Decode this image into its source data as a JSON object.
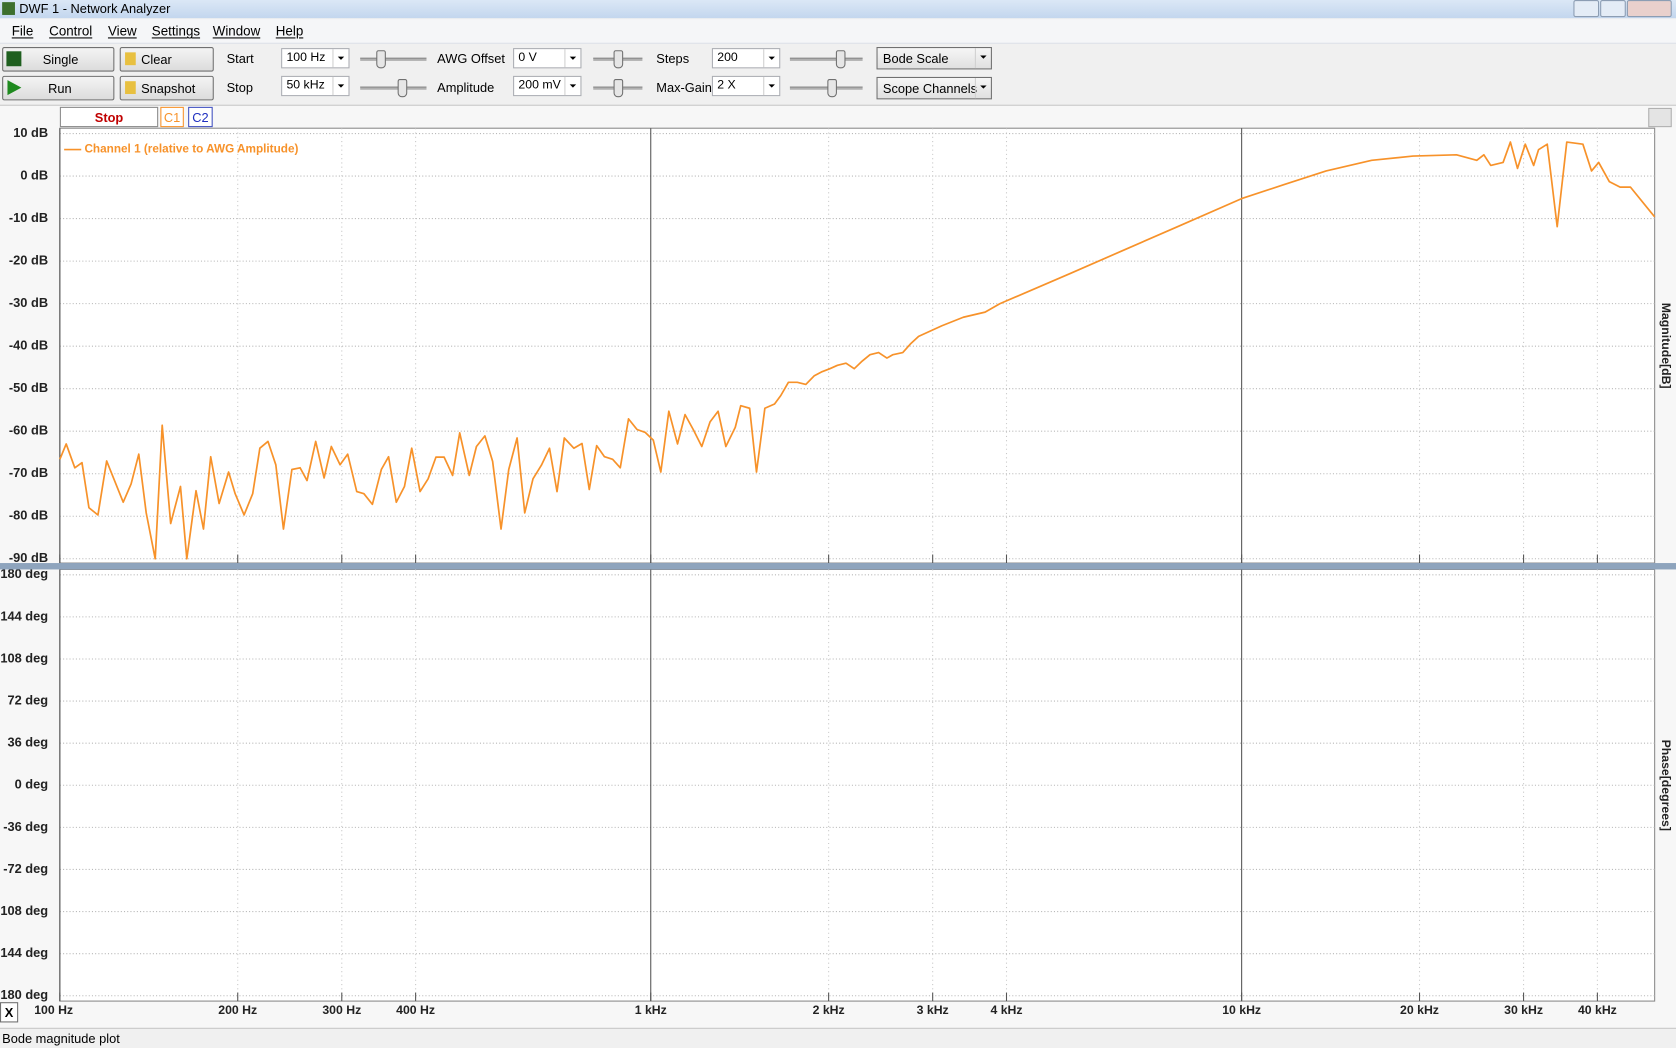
{
  "window": {
    "title": "DWF 1 - Network Analyzer"
  },
  "menu": [
    "File",
    "Control",
    "View",
    "Settings",
    "Window",
    "Help"
  ],
  "toolbar": {
    "single": "Single",
    "run": "Run",
    "clear": "Clear",
    "snapshot": "Snapshot",
    "start_label": "Start",
    "start_value": "100 Hz",
    "stop_label": "Stop",
    "stop_value": "50 kHz",
    "awg_offset_label": "AWG Offset",
    "awg_offset_value": "0 V",
    "amplitude_label": "Amplitude",
    "amplitude_value": "200 mV",
    "steps_label": "Steps",
    "steps_value": "200",
    "max_gain_label": "Max-Gain",
    "max_gain_value": "2 X",
    "scale_select": "Bode Scale",
    "channels_select": "Scope Channels"
  },
  "tabs": {
    "stop": "Stop",
    "c1": "C1",
    "c2": "C2"
  },
  "status": "Bode magnitude plot",
  "close_button": "X",
  "chart_data": [
    {
      "type": "line",
      "xscale": "log",
      "xlim": [
        100,
        50000
      ],
      "ylim": [
        -90,
        10
      ],
      "y_label": "Magnitude[dB]",
      "grid": true,
      "legend": "top-left",
      "yticks": [
        {
          "value": 10,
          "label": "10 dB"
        },
        {
          "value": 0,
          "label": "0 dB"
        },
        {
          "value": -10,
          "label": "-10 dB"
        },
        {
          "value": -20,
          "label": "-20 dB"
        },
        {
          "value": -30,
          "label": "-30 dB"
        },
        {
          "value": -40,
          "label": "-40 dB"
        },
        {
          "value": -50,
          "label": "-50 dB"
        },
        {
          "value": -60,
          "label": "-60 dB"
        },
        {
          "value": -70,
          "label": "-70 dB"
        },
        {
          "value": -80,
          "label": "-80 dB"
        },
        {
          "value": -90,
          "label": "-90 dB"
        }
      ],
      "x": [
        100,
        102.5,
        106,
        109,
        112,
        116,
        120,
        128,
        132,
        136,
        140,
        145,
        149,
        154,
        160,
        164,
        170,
        175,
        180,
        186,
        193,
        198,
        205,
        212,
        218,
        225,
        232,
        239,
        247,
        255,
        262,
        271,
        280,
        288,
        298,
        307,
        318,
        327,
        338,
        350,
        360,
        371,
        383,
        394,
        407,
        420,
        433,
        447,
        462,
        475,
        493,
        507,
        524,
        540,
        558,
        575,
        594,
        612,
        632,
        653,
        674,
        694,
        714,
        741,
        765,
        787,
        810,
        835,
        862,
        888,
        917,
        948,
        979,
        1010,
        1040,
        1073,
        1110,
        1143,
        1180,
        1220,
        1260,
        1300,
        1340,
        1390,
        1420,
        1470,
        1510,
        1560,
        1620,
        1660,
        1710,
        1770,
        1830,
        1890,
        1950,
        2010,
        2070,
        2140,
        2210,
        2280,
        2350,
        2430,
        2510,
        2570,
        2670,
        2750,
        2840,
        3110,
        3380,
        3680,
        3900,
        5130,
        6320,
        7790,
        10000,
        11800,
        13900,
        16600,
        19500,
        23100,
        25000,
        25700,
        26400,
        27700,
        28500,
        29300,
        30200,
        31200,
        31800,
        32900,
        34200,
        35500,
        37800,
        39100,
        40200,
        41900,
        43700,
        45500,
        50000
      ],
      "series": [
        {
          "name": "Channel 1 (relative to AWG Amplitude)",
          "color": "#f7922a",
          "values": [
            -66.6,
            -63,
            -68.6,
            -67.4,
            -78,
            -79.7,
            -67,
            -76.7,
            -72.4,
            -65.4,
            -79.2,
            -90,
            -58.6,
            -81.7,
            -73,
            -90,
            -74,
            -83,
            -66,
            -77,
            -69.6,
            -74.7,
            -79.7,
            -74.7,
            -64,
            -62.4,
            -67.9,
            -83,
            -69,
            -68.6,
            -71.6,
            -62.4,
            -71,
            -63.6,
            -67.9,
            -65.4,
            -74.2,
            -74.7,
            -77.2,
            -69,
            -66,
            -76.7,
            -73,
            -64,
            -74.2,
            -71.2,
            -66.1,
            -66.1,
            -70.4,
            -60.4,
            -70.4,
            -63.6,
            -61.1,
            -67.1,
            -83,
            -69,
            -61.6,
            -79.2,
            -71.2,
            -68,
            -64,
            -74.2,
            -61.6,
            -64,
            -62.9,
            -73.7,
            -63.4,
            -66,
            -66.6,
            -68.6,
            -57.1,
            -59.6,
            -60.3,
            -62.1,
            -69.6,
            -55.3,
            -63,
            -56.1,
            -59.6,
            -63.6,
            -57.8,
            -55.3,
            -63.6,
            -59.1,
            -54,
            -54.6,
            -69.6,
            -54.6,
            -53.6,
            -51.6,
            -48.5,
            -48.5,
            -49,
            -47,
            -46,
            -45.3,
            -44.5,
            -44,
            -45.3,
            -43.5,
            -42,
            -41.5,
            -42.8,
            -42,
            -41.5,
            -39.5,
            -37.7,
            -35.2,
            -33.2,
            -32,
            -30,
            -22.9,
            -17.4,
            -11.9,
            -5.3,
            -2,
            1.2,
            3.7,
            4.7,
            5,
            3.7,
            5,
            2.5,
            3.2,
            8,
            1.8,
            7.5,
            2.5,
            6.2,
            7.5,
            -11.9,
            8,
            7.5,
            1.2,
            3.2,
            -1.3,
            -2.6,
            -2.6,
            -9.6
          ]
        }
      ]
    },
    {
      "type": "line",
      "xscale": "log",
      "xlim": [
        100,
        50000
      ],
      "ylim": [
        -180,
        180
      ],
      "y_label": "Phase[degrees]",
      "grid": true,
      "yticks": [
        {
          "value": 180,
          "label": "180 deg"
        },
        {
          "value": 144,
          "label": "144 deg"
        },
        {
          "value": 108,
          "label": "108 deg"
        },
        {
          "value": 72,
          "label": "72 deg"
        },
        {
          "value": 36,
          "label": "36 deg"
        },
        {
          "value": 0,
          "label": "0 deg"
        },
        {
          "value": -36,
          "label": "-36 deg"
        },
        {
          "value": -72,
          "label": "-72 deg"
        },
        {
          "value": -108,
          "label": "-108 deg"
        },
        {
          "value": -144,
          "label": "-144 deg"
        },
        {
          "value": -180,
          "label": "-180 deg"
        }
      ],
      "xticks": [
        {
          "value": 100,
          "label": "100 Hz"
        },
        {
          "value": 200,
          "label": "200 Hz"
        },
        {
          "value": 300,
          "label": "300 Hz"
        },
        {
          "value": 400,
          "label": "400 Hz"
        },
        {
          "value": 1000,
          "label": "1 kHz"
        },
        {
          "value": 2000,
          "label": "2 kHz"
        },
        {
          "value": 3000,
          "label": "3 kHz"
        },
        {
          "value": 4000,
          "label": "4 kHz"
        },
        {
          "value": 10000,
          "label": "10 kHz"
        },
        {
          "value": 20000,
          "label": "20 kHz"
        },
        {
          "value": 30000,
          "label": "30 kHz"
        },
        {
          "value": 40000,
          "label": "40 kHz"
        }
      ]
    }
  ]
}
